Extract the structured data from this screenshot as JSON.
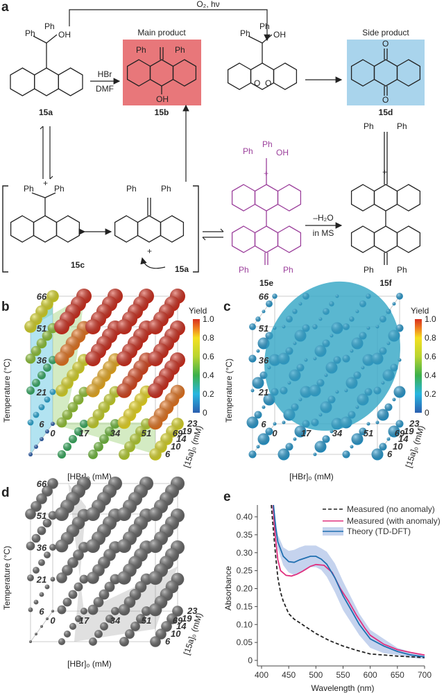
{
  "panel_labels": {
    "a": "a",
    "b": "b",
    "c": "c",
    "d": "d",
    "e": "e"
  },
  "scheme": {
    "reagent_top": "O₂, hν",
    "main_product": "Main product",
    "side_product": "Side product",
    "hbr": "HBr",
    "dmf": "DMF",
    "minus_water": "–H₂O",
    "in_ms": "in MS",
    "ph": "Ph",
    "oh": "OH",
    "o": "O",
    "plus": "+",
    "compounds": {
      "c15a": "15a",
      "c15b": "15b",
      "c15c": "15c",
      "c15d": "15d",
      "c15e": "15e",
      "c15f": "15f",
      "c15a_arrow": "15a"
    },
    "colors": {
      "main_box": "#e8777a",
      "side_box": "#a9d4ec",
      "dimer": "#9b3f9b"
    }
  },
  "plots3d": {
    "temperature_label": "Temperature (°C)",
    "hbr_label": "[HBr]₀ (mM)",
    "depth_label": "[15a]₀ (mM)",
    "temp_ticks": [
      "66",
      "51",
      "36",
      "21",
      "6"
    ],
    "hbr_ticks": [
      "0",
      "17",
      "34",
      "51",
      "69"
    ],
    "depth_ticks": [
      "6",
      "10",
      "14",
      "19",
      "23"
    ],
    "colorbar_title": "Yield",
    "colorbar_ticks": [
      "1.0",
      "0.8",
      "0.6",
      "0.4",
      "0.2",
      "0"
    ]
  },
  "chart_data": {
    "type": "line",
    "title": "",
    "xlabel": "Wavelength (nm)",
    "ylabel": "Absorbance",
    "xlim": [
      400,
      700
    ],
    "ylim": [
      0,
      0.44
    ],
    "xticks": [
      "400",
      "450",
      "500",
      "550",
      "600",
      "650",
      "700"
    ],
    "yticks": [
      "0",
      "0.05",
      "0.10",
      "0.15",
      "0.20",
      "0.25",
      "0.30",
      "0.35",
      "0.40"
    ],
    "legend_position": "top-right",
    "series": [
      {
        "name": "Measured (no anomaly)",
        "color": "#222222",
        "style": "dashed",
        "x": [
          418,
          422,
          426,
          430,
          435,
          440,
          450,
          460,
          475,
          500,
          525,
          550,
          575,
          600,
          625,
          650,
          675,
          700
        ],
        "y": [
          0.44,
          0.36,
          0.29,
          0.23,
          0.19,
          0.165,
          0.13,
          0.115,
          0.1,
          0.075,
          0.055,
          0.04,
          0.028,
          0.018,
          0.015,
          0.012,
          0.01,
          0.008
        ]
      },
      {
        "name": "Measured (with anomaly)",
        "color": "#e0307f",
        "style": "solid",
        "x": [
          421,
          425,
          430,
          435,
          445,
          455,
          465,
          475,
          490,
          500,
          515,
          530,
          545,
          560,
          575,
          590,
          600,
          625,
          650,
          675,
          700
        ],
        "y": [
          0.44,
          0.35,
          0.28,
          0.25,
          0.237,
          0.235,
          0.24,
          0.248,
          0.262,
          0.267,
          0.265,
          0.245,
          0.2,
          0.165,
          0.125,
          0.09,
          0.07,
          0.045,
          0.03,
          0.022,
          0.015
        ]
      },
      {
        "name": "Theory (TD-DFT)",
        "color": "#1f6fb0",
        "style": "solid",
        "band_color": "#c5d3ee",
        "x": [
          422,
          426,
          430,
          440,
          450,
          460,
          470,
          480,
          490,
          500,
          510,
          520,
          535,
          550,
          565,
          580,
          600,
          625,
          650,
          675,
          700
        ],
        "y": [
          0.44,
          0.37,
          0.33,
          0.29,
          0.275,
          0.273,
          0.28,
          0.285,
          0.29,
          0.29,
          0.282,
          0.268,
          0.23,
          0.18,
          0.14,
          0.1,
          0.06,
          0.04,
          0.025,
          0.015,
          0.01
        ],
        "band": [
          0.02,
          0.02,
          0.02,
          0.025,
          0.03,
          0.035,
          0.035,
          0.035,
          0.03,
          0.03,
          0.03,
          0.035,
          0.04,
          0.04,
          0.035,
          0.03,
          0.025,
          0.02,
          0.01,
          0.008,
          0.006
        ]
      }
    ]
  }
}
